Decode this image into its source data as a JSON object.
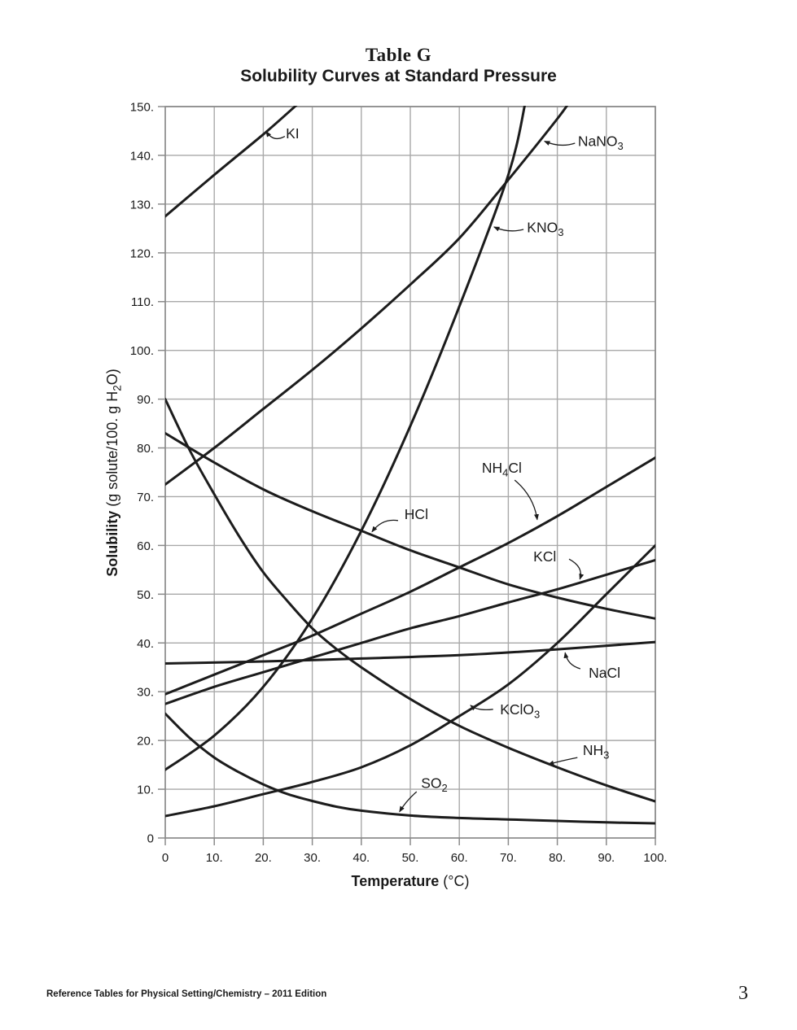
{
  "title": "Table G",
  "subtitle": "Solubility Curves at Standard Pressure",
  "footer": {
    "left": "Reference Tables for Physical Setting/Chemistry – 2011 Edition",
    "page_number": "3"
  },
  "style": {
    "curve_color": "#1c1c1c",
    "grid_color": "#a9a9a9",
    "axis_color": "#8a8a8a",
    "background": "#ffffff"
  },
  "chart_data": {
    "type": "line",
    "title": "Solubility Curves at Standard Pressure",
    "xlabel": "Temperature (°C)",
    "ylabel": "Solubility (g solute/100. g H2O)",
    "xlabel_segments": [
      {
        "t": "Temperature",
        "b": 1
      },
      {
        "t": " (°C)"
      }
    ],
    "ylabel_segments": [
      {
        "t": "Solubility",
        "b": 1
      },
      {
        "t": " (g solute/100. g H"
      },
      {
        "t": "2",
        "sub": 1
      },
      {
        "t": "O)"
      }
    ],
    "xlim": [
      0,
      100
    ],
    "ylim": [
      0,
      150
    ],
    "grid": true,
    "x_ticks": [
      {
        "v": 0,
        "label": "0"
      },
      {
        "v": 10,
        "label": "10."
      },
      {
        "v": 20,
        "label": "20."
      },
      {
        "v": 30,
        "label": "30."
      },
      {
        "v": 40,
        "label": "40."
      },
      {
        "v": 50,
        "label": "50."
      },
      {
        "v": 60,
        "label": "60."
      },
      {
        "v": 70,
        "label": "70."
      },
      {
        "v": 80,
        "label": "80."
      },
      {
        "v": 90,
        "label": "90."
      },
      {
        "v": 100,
        "label": "100."
      }
    ],
    "y_ticks": [
      {
        "v": 0,
        "label": "0"
      },
      {
        "v": 10,
        "label": "10."
      },
      {
        "v": 20,
        "label": "20."
      },
      {
        "v": 30,
        "label": "30."
      },
      {
        "v": 40,
        "label": "40."
      },
      {
        "v": 50,
        "label": "50."
      },
      {
        "v": 60,
        "label": "60."
      },
      {
        "v": 70,
        "label": "70."
      },
      {
        "v": 80,
        "label": "80."
      },
      {
        "v": 90,
        "label": "90."
      },
      {
        "v": 100,
        "label": "100."
      },
      {
        "v": 110,
        "label": "110."
      },
      {
        "v": 120,
        "label": "120."
      },
      {
        "v": 130,
        "label": "130."
      },
      {
        "v": 140,
        "label": "140."
      },
      {
        "v": 150,
        "label": "150."
      }
    ],
    "series": [
      {
        "name": "KI",
        "points": [
          [
            0,
            127.5
          ],
          [
            10,
            136
          ],
          [
            20,
            144.3
          ],
          [
            27,
            150.5
          ]
        ]
      },
      {
        "name": "NaNO3",
        "points": [
          [
            0,
            72.5
          ],
          [
            10,
            80
          ],
          [
            20,
            88
          ],
          [
            30,
            96
          ],
          [
            40,
            104.5
          ],
          [
            50,
            113.5
          ],
          [
            60,
            123
          ],
          [
            70,
            135
          ],
          [
            80,
            147.5
          ],
          [
            82.5,
            151
          ]
        ]
      },
      {
        "name": "KNO3",
        "points": [
          [
            0,
            14
          ],
          [
            10,
            21
          ],
          [
            20,
            31
          ],
          [
            30,
            45
          ],
          [
            40,
            63
          ],
          [
            50,
            84.5
          ],
          [
            60,
            109
          ],
          [
            70,
            136
          ],
          [
            73.5,
            151
          ]
        ]
      },
      {
        "name": "HCl",
        "points": [
          [
            0,
            83
          ],
          [
            10,
            77
          ],
          [
            20,
            71.5
          ],
          [
            30,
            67
          ],
          [
            40,
            63
          ],
          [
            50,
            59
          ],
          [
            60,
            55.5
          ],
          [
            70,
            52
          ],
          [
            80,
            49.3
          ],
          [
            90,
            47
          ],
          [
            100,
            45
          ]
        ]
      },
      {
        "name": "NH4Cl",
        "points": [
          [
            0,
            29.5
          ],
          [
            10,
            33.5
          ],
          [
            20,
            37.5
          ],
          [
            30,
            41.5
          ],
          [
            40,
            46
          ],
          [
            50,
            50.5
          ],
          [
            60,
            55.5
          ],
          [
            70,
            60.5
          ],
          [
            80,
            66
          ],
          [
            90,
            72
          ],
          [
            100,
            78
          ]
        ]
      },
      {
        "name": "KCl",
        "points": [
          [
            0,
            27.5
          ],
          [
            10,
            31
          ],
          [
            20,
            34
          ],
          [
            30,
            37
          ],
          [
            40,
            40
          ],
          [
            50,
            43
          ],
          [
            60,
            45.5
          ],
          [
            70,
            48.3
          ],
          [
            80,
            51
          ],
          [
            90,
            54
          ],
          [
            100,
            57
          ]
        ]
      },
      {
        "name": "NaCl",
        "points": [
          [
            0,
            35.8
          ],
          [
            20,
            36.2
          ],
          [
            40,
            36.8
          ],
          [
            60,
            37.5
          ],
          [
            80,
            38.7
          ],
          [
            100,
            40.2
          ]
        ]
      },
      {
        "name": "KClO3",
        "points": [
          [
            0,
            4.5
          ],
          [
            10,
            6.5
          ],
          [
            20,
            9
          ],
          [
            30,
            11.5
          ],
          [
            40,
            14.5
          ],
          [
            50,
            19
          ],
          [
            60,
            25
          ],
          [
            70,
            31.5
          ],
          [
            80,
            40
          ],
          [
            90,
            50
          ],
          [
            100,
            60
          ]
        ]
      },
      {
        "name": "NH3",
        "points": [
          [
            0,
            90
          ],
          [
            5,
            79.5
          ],
          [
            10,
            70.5
          ],
          [
            15,
            62
          ],
          [
            20,
            54.5
          ],
          [
            25,
            48.5
          ],
          [
            30,
            43
          ],
          [
            35,
            38.7
          ],
          [
            40,
            35
          ],
          [
            50,
            28.5
          ],
          [
            60,
            23
          ],
          [
            70,
            18.5
          ],
          [
            80,
            14.5
          ],
          [
            90,
            10.8
          ],
          [
            100,
            7.5
          ]
        ]
      },
      {
        "name": "SO2",
        "points": [
          [
            0,
            25.5
          ],
          [
            5,
            20.5
          ],
          [
            10,
            16.5
          ],
          [
            15,
            13.5
          ],
          [
            20,
            11
          ],
          [
            25,
            9
          ],
          [
            30,
            7.6
          ],
          [
            35,
            6.4
          ],
          [
            40,
            5.6
          ],
          [
            50,
            4.6
          ],
          [
            60,
            4.1
          ],
          [
            70,
            3.8
          ],
          [
            80,
            3.5
          ],
          [
            90,
            3.2
          ],
          [
            100,
            3
          ]
        ]
      }
    ],
    "annotations": [
      {
        "name": "KI",
        "segments": [
          {
            "t": "KI"
          }
        ],
        "text_at": [
          24.6,
          143.5
        ],
        "arrow": [
          [
            24.4,
            143.9
          ],
          [
            22.1,
            142.6
          ],
          [
            20.6,
            144.9
          ]
        ]
      },
      {
        "name": "NaNO3",
        "segments": [
          {
            "t": "NaNO"
          },
          {
            "t": "3",
            "sub": 1
          }
        ],
        "text_at": [
          84.2,
          141.9
        ],
        "arrow": [
          [
            83.6,
            142.5
          ],
          [
            80.6,
            141.5
          ],
          [
            77.4,
            142.9
          ]
        ]
      },
      {
        "name": "KNO3",
        "segments": [
          {
            "t": "KNO"
          },
          {
            "t": "3",
            "sub": 1
          }
        ],
        "text_at": [
          73.8,
          124.2
        ],
        "arrow": [
          [
            73.1,
            124.8
          ],
          [
            70.1,
            124.0
          ],
          [
            67.1,
            125.3
          ]
        ]
      },
      {
        "name": "NH4Cl",
        "segments": [
          {
            "t": "NH"
          },
          {
            "t": "4",
            "sub": 1
          },
          {
            "t": "Cl"
          }
        ],
        "text_at": [
          64.6,
          74.9
        ],
        "arrow": [
          [
            71.3,
            73.4
          ],
          [
            75.2,
            70.1
          ],
          [
            75.9,
            65.3
          ]
        ]
      },
      {
        "name": "HCl",
        "segments": [
          {
            "t": "HCl"
          }
        ],
        "text_at": [
          48.8,
          65.4
        ],
        "arrow": [
          [
            47.5,
            65.1
          ],
          [
            44.3,
            65.6
          ],
          [
            42.2,
            62.8
          ]
        ]
      },
      {
        "name": "KCl",
        "segments": [
          {
            "t": "KCl"
          }
        ],
        "text_at": [
          75.1,
          56.7
        ],
        "arrow": [
          [
            82.4,
            57.2
          ],
          [
            85.4,
            55.6
          ],
          [
            84.6,
            53.1
          ]
        ]
      },
      {
        "name": "NaCl",
        "segments": [
          {
            "t": "NaCl"
          }
        ],
        "text_at": [
          86.4,
          32.9
        ],
        "arrow": [
          [
            84.7,
            34.7
          ],
          [
            82.1,
            35.4
          ],
          [
            81.6,
            38.0
          ]
        ]
      },
      {
        "name": "KClO3",
        "segments": [
          {
            "t": "KClO"
          },
          {
            "t": "3",
            "sub": 1
          }
        ],
        "text_at": [
          68.3,
          25.4
        ],
        "arrow": [
          [
            66.9,
            26.4
          ],
          [
            63.8,
            26.0
          ],
          [
            62.3,
            27.2
          ]
        ]
      },
      {
        "name": "NH3",
        "segments": [
          {
            "t": "NH"
          },
          {
            "t": "3",
            "sub": 1
          }
        ],
        "text_at": [
          85.2,
          17.0
        ],
        "arrow": [
          [
            84.1,
            16.5
          ],
          [
            80.2,
            15.7
          ],
          [
            78.2,
            15.1
          ]
        ]
      },
      {
        "name": "SO2",
        "segments": [
          {
            "t": "SO"
          },
          {
            "t": "2",
            "sub": 1
          }
        ],
        "text_at": [
          52.2,
          10.3
        ],
        "arrow": [
          [
            51.3,
            9.5
          ],
          [
            49.2,
            7.7
          ],
          [
            47.8,
            5.4
          ]
        ]
      }
    ]
  }
}
